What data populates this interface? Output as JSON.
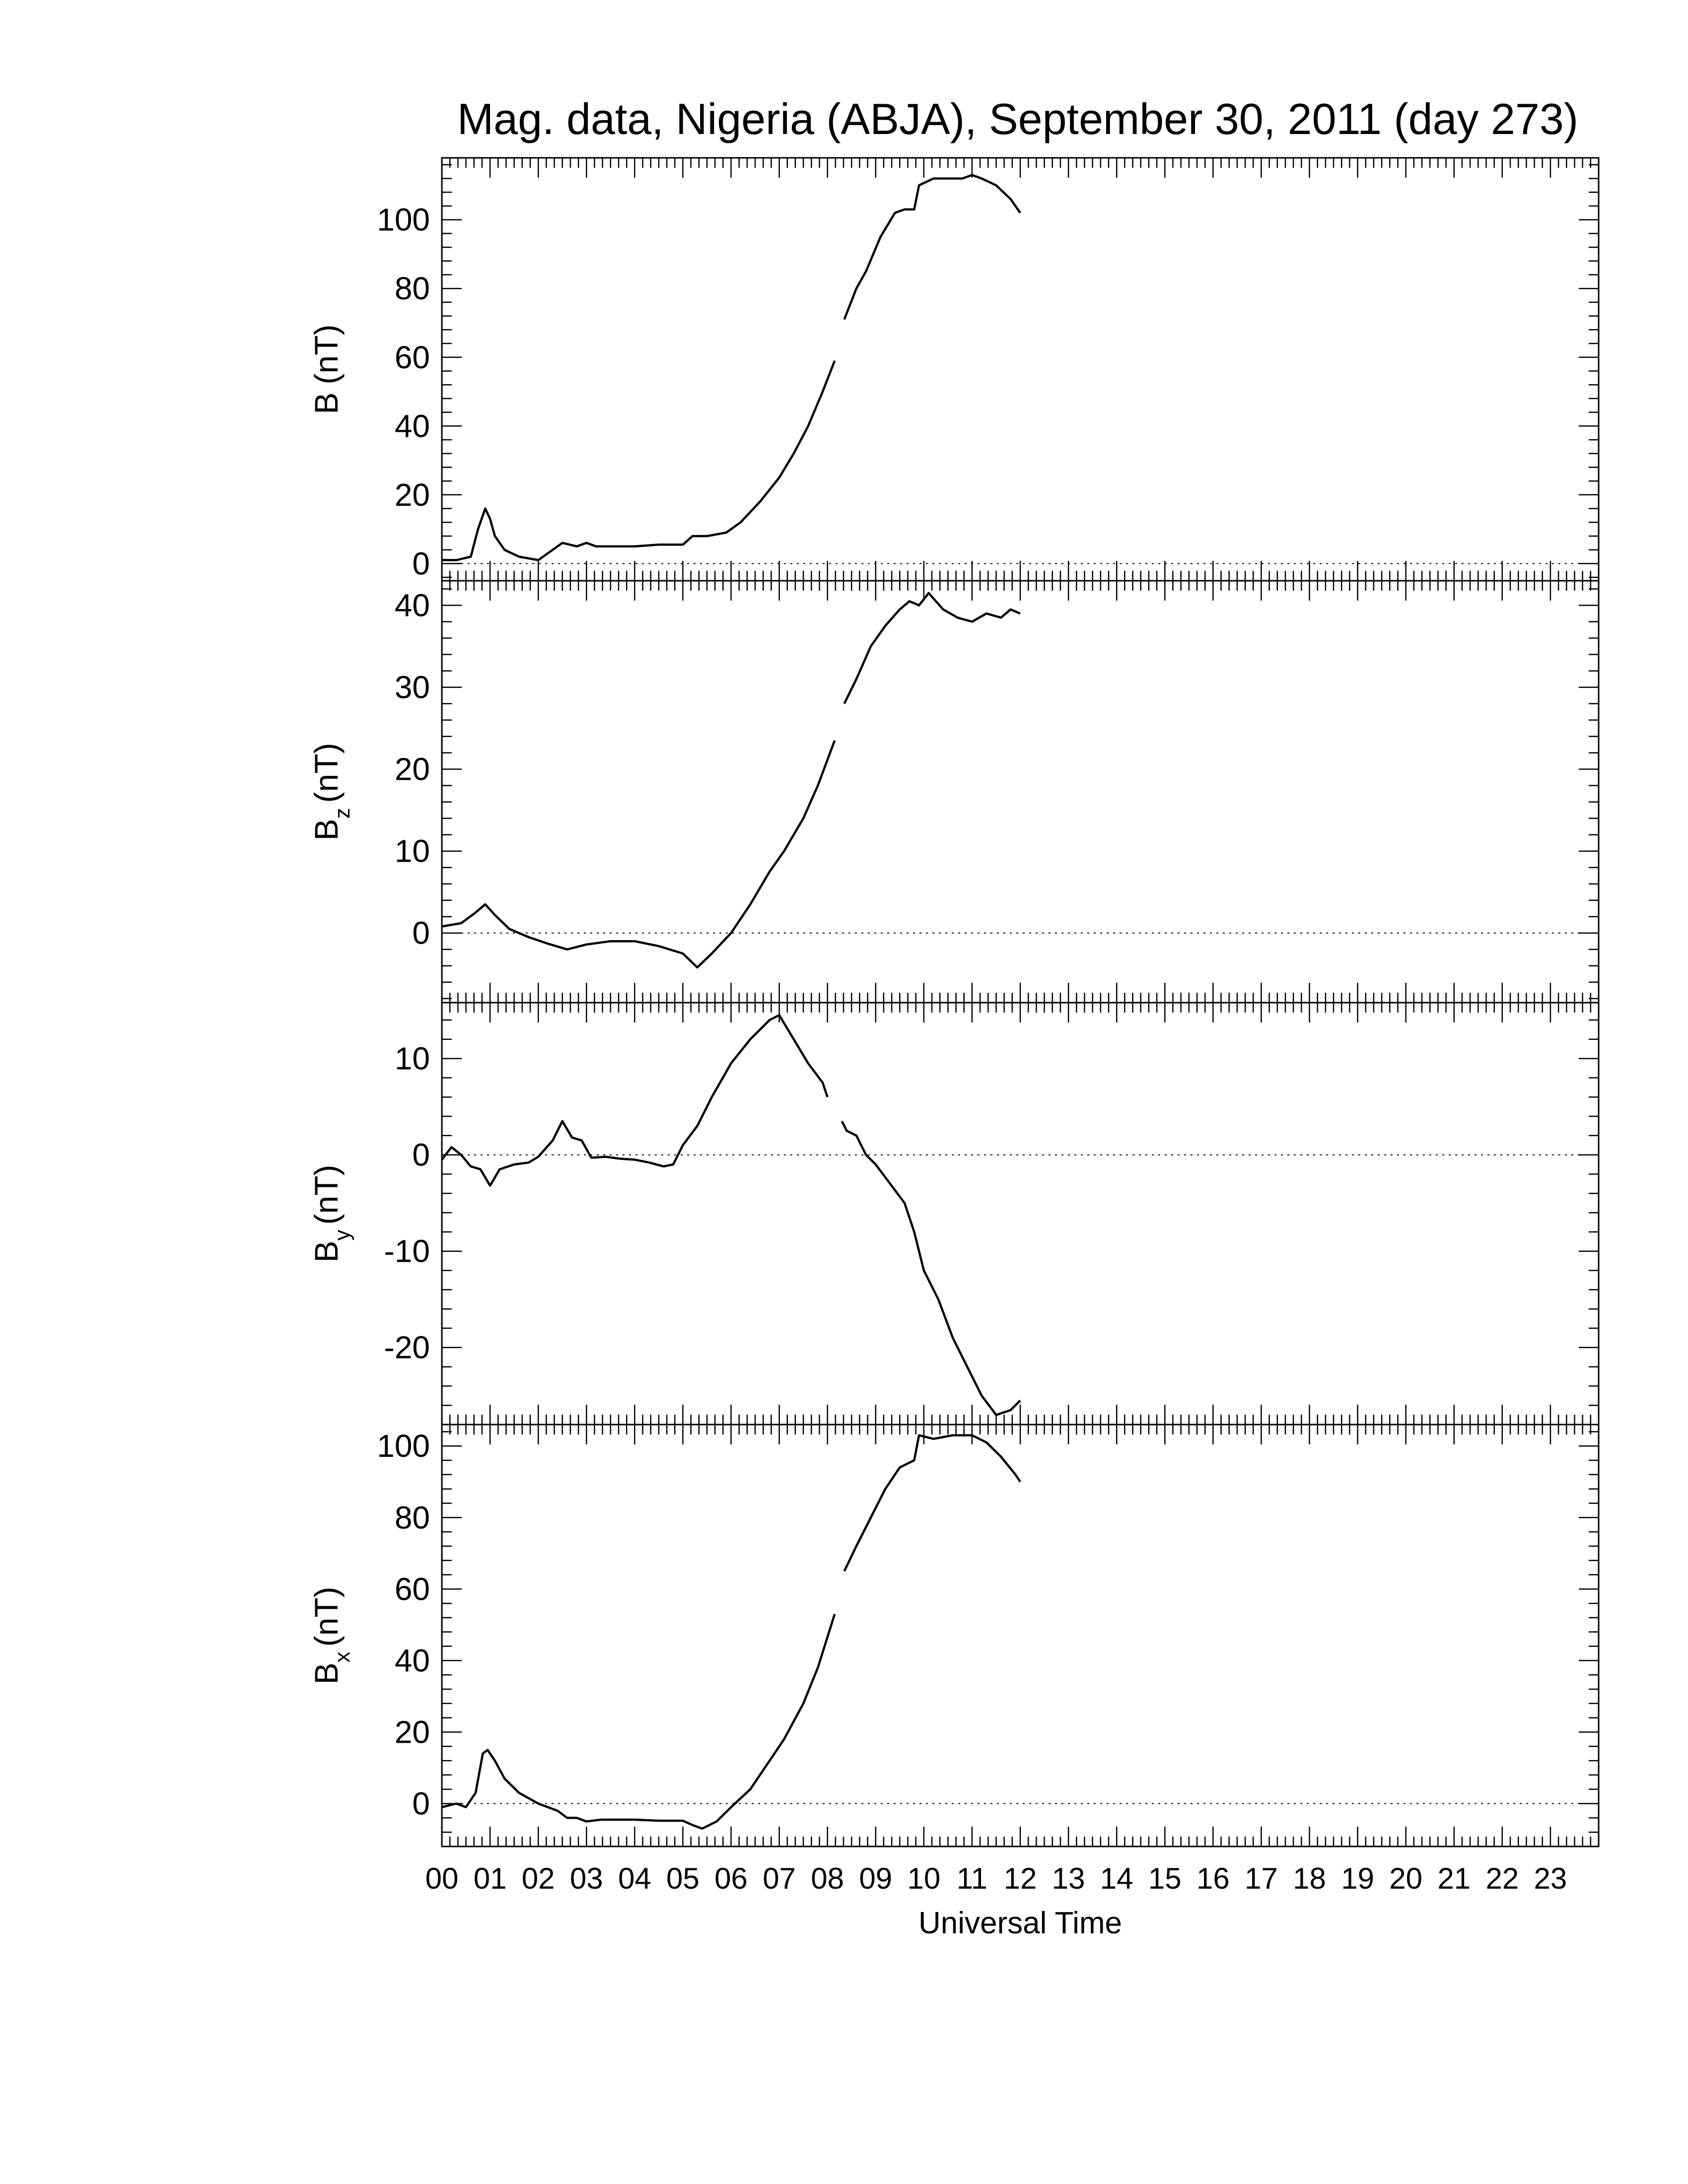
{
  "chart_data": {
    "type": "line",
    "title": "Mag. data, Nigeria (ABJA), September 30, 2011 (day 273)",
    "xlabel": "Universal Time",
    "xlim": [
      0,
      24
    ],
    "x_tick_labels": [
      "00",
      "01",
      "02",
      "03",
      "04",
      "05",
      "06",
      "07",
      "08",
      "09",
      "10",
      "11",
      "12",
      "13",
      "14",
      "15",
      "16",
      "17",
      "18",
      "19",
      "20",
      "21",
      "22",
      "23"
    ],
    "panels": [
      {
        "id": "B",
        "ylabel_main": "B",
        "ylabel_sub": "",
        "ylabel_unit": "(nT)",
        "ylim": [
          -5,
          118
        ],
        "yticks": [
          0,
          20,
          40,
          60,
          80,
          100
        ],
        "zero_line": true,
        "segments": [
          [
            [
              0,
              1
            ],
            [
              0.3,
              1
            ],
            [
              0.6,
              2
            ],
            [
              0.75,
              10
            ],
            [
              0.9,
              16
            ],
            [
              1.0,
              13
            ],
            [
              1.1,
              8
            ],
            [
              1.3,
              4
            ],
            [
              1.6,
              2
            ],
            [
              2.0,
              1
            ],
            [
              2.2,
              3
            ],
            [
              2.5,
              6
            ],
            [
              2.8,
              5
            ],
            [
              3.0,
              6
            ],
            [
              3.2,
              5
            ],
            [
              3.6,
              5
            ],
            [
              4.0,
              5
            ],
            [
              4.5,
              5.5
            ],
            [
              5.0,
              5.5
            ],
            [
              5.2,
              8
            ],
            [
              5.5,
              8
            ],
            [
              5.9,
              9
            ],
            [
              6.2,
              12
            ],
            [
              6.6,
              18
            ],
            [
              7.0,
              25
            ],
            [
              7.3,
              32
            ],
            [
              7.6,
              40
            ],
            [
              7.9,
              50
            ],
            [
              8.15,
              59
            ]
          ],
          [
            [
              8.35,
              71
            ],
            [
              8.6,
              80
            ],
            [
              8.8,
              85
            ],
            [
              9.1,
              95
            ],
            [
              9.4,
              102
            ],
            [
              9.6,
              103
            ],
            [
              9.8,
              103
            ],
            [
              9.9,
              110
            ],
            [
              10.2,
              112
            ],
            [
              10.5,
              112
            ],
            [
              10.8,
              112
            ],
            [
              11.0,
              113
            ],
            [
              11.2,
              112
            ],
            [
              11.5,
              110
            ],
            [
              11.8,
              106
            ],
            [
              12.0,
              102
            ]
          ]
        ]
      },
      {
        "id": "Bz",
        "ylabel_main": "B",
        "ylabel_sub": "z",
        "ylabel_unit": "(nT)",
        "ylim": [
          -8.5,
          43
        ],
        "yticks": [
          0,
          10,
          20,
          30,
          40
        ],
        "zero_line": true,
        "segments": [
          [
            [
              0,
              0.8
            ],
            [
              0.4,
              1.2
            ],
            [
              0.7,
              2.5
            ],
            [
              0.9,
              3.5
            ],
            [
              1.1,
              2.2
            ],
            [
              1.4,
              0.5
            ],
            [
              1.8,
              -0.5
            ],
            [
              2.2,
              -1.3
            ],
            [
              2.6,
              -2
            ],
            [
              3.0,
              -1.4
            ],
            [
              3.5,
              -1.0
            ],
            [
              4.0,
              -1.0
            ],
            [
              4.5,
              -1.6
            ],
            [
              5.0,
              -2.5
            ],
            [
              5.3,
              -4.2
            ],
            [
              5.6,
              -2.5
            ],
            [
              6.0,
              0
            ],
            [
              6.4,
              3.5
            ],
            [
              6.8,
              7.5
            ],
            [
              7.1,
              10
            ],
            [
              7.5,
              14
            ],
            [
              7.8,
              18
            ],
            [
              8.15,
              23.5
            ]
          ],
          [
            [
              8.35,
              28
            ],
            [
              8.6,
              31
            ],
            [
              8.9,
              35
            ],
            [
              9.2,
              37.5
            ],
            [
              9.5,
              39.5
            ],
            [
              9.7,
              40.5
            ],
            [
              9.9,
              40
            ],
            [
              10.1,
              41.5
            ],
            [
              10.4,
              39.5
            ],
            [
              10.7,
              38.5
            ],
            [
              11.0,
              38
            ],
            [
              11.3,
              39
            ],
            [
              11.6,
              38.5
            ],
            [
              11.8,
              39.5
            ],
            [
              12.0,
              39
            ]
          ]
        ]
      },
      {
        "id": "By",
        "ylabel_main": "B",
        "ylabel_sub": "y",
        "ylabel_unit": "(nT)",
        "ylim": [
          -28,
          15.8
        ],
        "yticks": [
          -20,
          -10,
          0,
          10
        ],
        "zero_line": true,
        "segments": [
          [
            [
              0,
              -0.5
            ],
            [
              0.2,
              0.8
            ],
            [
              0.4,
              0
            ],
            [
              0.6,
              -1.2
            ],
            [
              0.8,
              -1.5
            ],
            [
              1.0,
              -3.2
            ],
            [
              1.2,
              -1.5
            ],
            [
              1.5,
              -1
            ],
            [
              1.8,
              -0.8
            ],
            [
              2.0,
              -0.2
            ],
            [
              2.3,
              1.5
            ],
            [
              2.5,
              3.5
            ],
            [
              2.7,
              1.8
            ],
            [
              2.9,
              1.5
            ],
            [
              3.1,
              -0.3
            ],
            [
              3.4,
              -0.2
            ],
            [
              3.7,
              -0.4
            ],
            [
              4.0,
              -0.5
            ],
            [
              4.3,
              -0.8
            ],
            [
              4.6,
              -1.2
            ],
            [
              4.8,
              -1
            ],
            [
              5.0,
              1
            ],
            [
              5.3,
              3
            ],
            [
              5.6,
              6
            ],
            [
              6.0,
              9.5
            ],
            [
              6.4,
              12
            ],
            [
              6.8,
              14
            ],
            [
              7.0,
              14.5
            ],
            [
              7.3,
              12
            ],
            [
              7.6,
              9.5
            ],
            [
              7.9,
              7.5
            ],
            [
              8.0,
              6
            ]
          ],
          [
            [
              8.3,
              3.5
            ],
            [
              8.4,
              2.5
            ],
            [
              8.6,
              2
            ],
            [
              8.8,
              0
            ],
            [
              9.0,
              -1
            ],
            [
              9.3,
              -3
            ],
            [
              9.6,
              -5
            ],
            [
              9.8,
              -8
            ],
            [
              10.0,
              -12
            ],
            [
              10.3,
              -15
            ],
            [
              10.6,
              -19
            ],
            [
              10.9,
              -22
            ],
            [
              11.2,
              -25
            ],
            [
              11.5,
              -27
            ],
            [
              11.8,
              -26.5
            ],
            [
              12.0,
              -25.5
            ]
          ]
        ]
      },
      {
        "id": "Bx",
        "ylabel_main": "B",
        "ylabel_sub": "x",
        "ylabel_unit": "(nT)",
        "ylim": [
          -12,
          106
        ],
        "yticks": [
          0,
          20,
          40,
          60,
          80,
          100
        ],
        "zero_line": true,
        "segments": [
          [
            [
              0,
              -1
            ],
            [
              0.3,
              0
            ],
            [
              0.5,
              -1
            ],
            [
              0.7,
              3
            ],
            [
              0.85,
              14
            ],
            [
              0.95,
              15
            ],
            [
              1.1,
              12
            ],
            [
              1.3,
              7
            ],
            [
              1.6,
              3
            ],
            [
              2.0,
              0
            ],
            [
              2.4,
              -2
            ],
            [
              2.6,
              -4
            ],
            [
              2.8,
              -4
            ],
            [
              3.0,
              -5
            ],
            [
              3.3,
              -4.5
            ],
            [
              3.7,
              -4.5
            ],
            [
              4.0,
              -4.5
            ],
            [
              4.5,
              -4.8
            ],
            [
              5.0,
              -4.8
            ],
            [
              5.2,
              -6
            ],
            [
              5.4,
              -7
            ],
            [
              5.7,
              -5
            ],
            [
              6.0,
              -1
            ],
            [
              6.4,
              4
            ],
            [
              6.8,
              12
            ],
            [
              7.1,
              18
            ],
            [
              7.5,
              28
            ],
            [
              7.8,
              38
            ],
            [
              8.15,
              53
            ]
          ],
          [
            [
              8.35,
              65
            ],
            [
              8.6,
              72
            ],
            [
              8.9,
              80
            ],
            [
              9.2,
              88
            ],
            [
              9.5,
              94
            ],
            [
              9.8,
              96
            ],
            [
              9.9,
              103
            ],
            [
              10.2,
              102
            ],
            [
              10.6,
              103
            ],
            [
              11.0,
              103
            ],
            [
              11.3,
              101
            ],
            [
              11.6,
              97
            ],
            [
              11.9,
              92
            ],
            [
              12.0,
              90
            ]
          ]
        ]
      }
    ]
  }
}
